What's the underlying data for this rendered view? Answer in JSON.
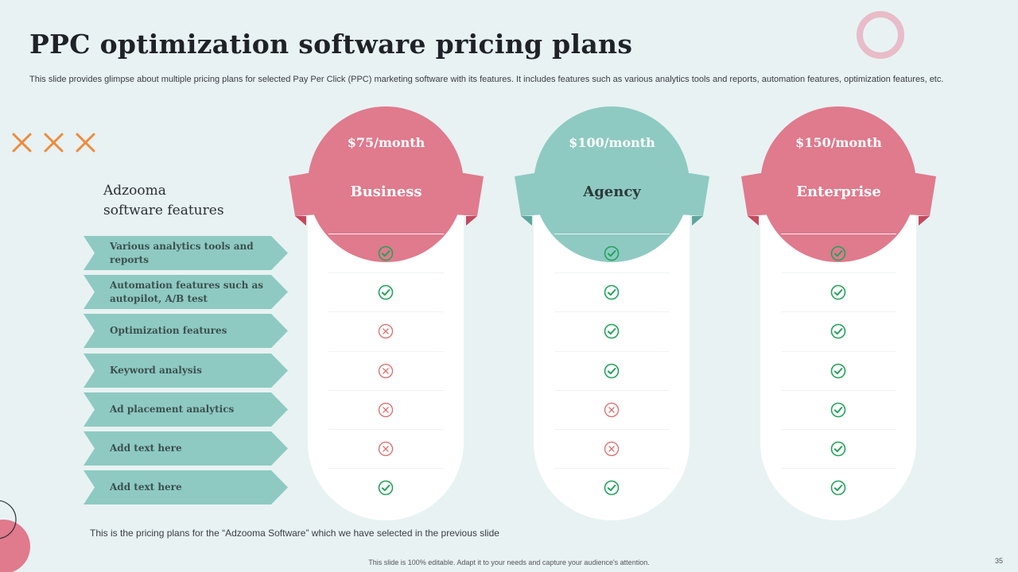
{
  "title": "PPC optimization software pricing plans",
  "subtitle": "This slide provides glimpse about multiple pricing plans for selected Pay Per Click (PPC) marketing software with its features. It includes features such as various analytics tools and reports, automation features, optimization features, etc.",
  "features_heading": "Adzooma\nsoftware features",
  "features": [
    "Various analytics tools and reports",
    "Automation features such as autopilot, A/B test",
    "Optimization features",
    "Keyword analysis",
    "Ad placement analytics",
    "Add text here",
    "Add text here"
  ],
  "plans": [
    {
      "price": "$75/month",
      "name": "Business",
      "color": "#e07a8d",
      "dark": "#c4495f",
      "name_color": "#ffffff",
      "marks": [
        true,
        true,
        false,
        false,
        false,
        false,
        true
      ]
    },
    {
      "price": "$100/month",
      "name": "Agency",
      "color": "#8ecac2",
      "dark": "#5ea69c",
      "name_color": "#2b3a3a",
      "marks": [
        true,
        true,
        true,
        true,
        false,
        false,
        true
      ]
    },
    {
      "price": "$150/month",
      "name": "Enterprise",
      "color": "#e07a8d",
      "dark": "#c4495f",
      "name_color": "#ffffff",
      "marks": [
        true,
        true,
        true,
        true,
        true,
        true,
        true
      ]
    }
  ],
  "icons": {
    "included": "check-circle-icon",
    "excluded": "x-circle-icon",
    "decor": "cross-icon"
  },
  "colors": {
    "check": "#23a25a",
    "cross": "#e06a6a",
    "feature_bg": "#8ecac2",
    "accent_orange": "#f08a3c"
  },
  "caption": "This is the pricing plans for the “Adzooma Software” which we have  selected in the previous  slide",
  "footer": "This slide is 100% editable.  Adapt it to your needs and capture your audience's attention.",
  "page_number": "35"
}
